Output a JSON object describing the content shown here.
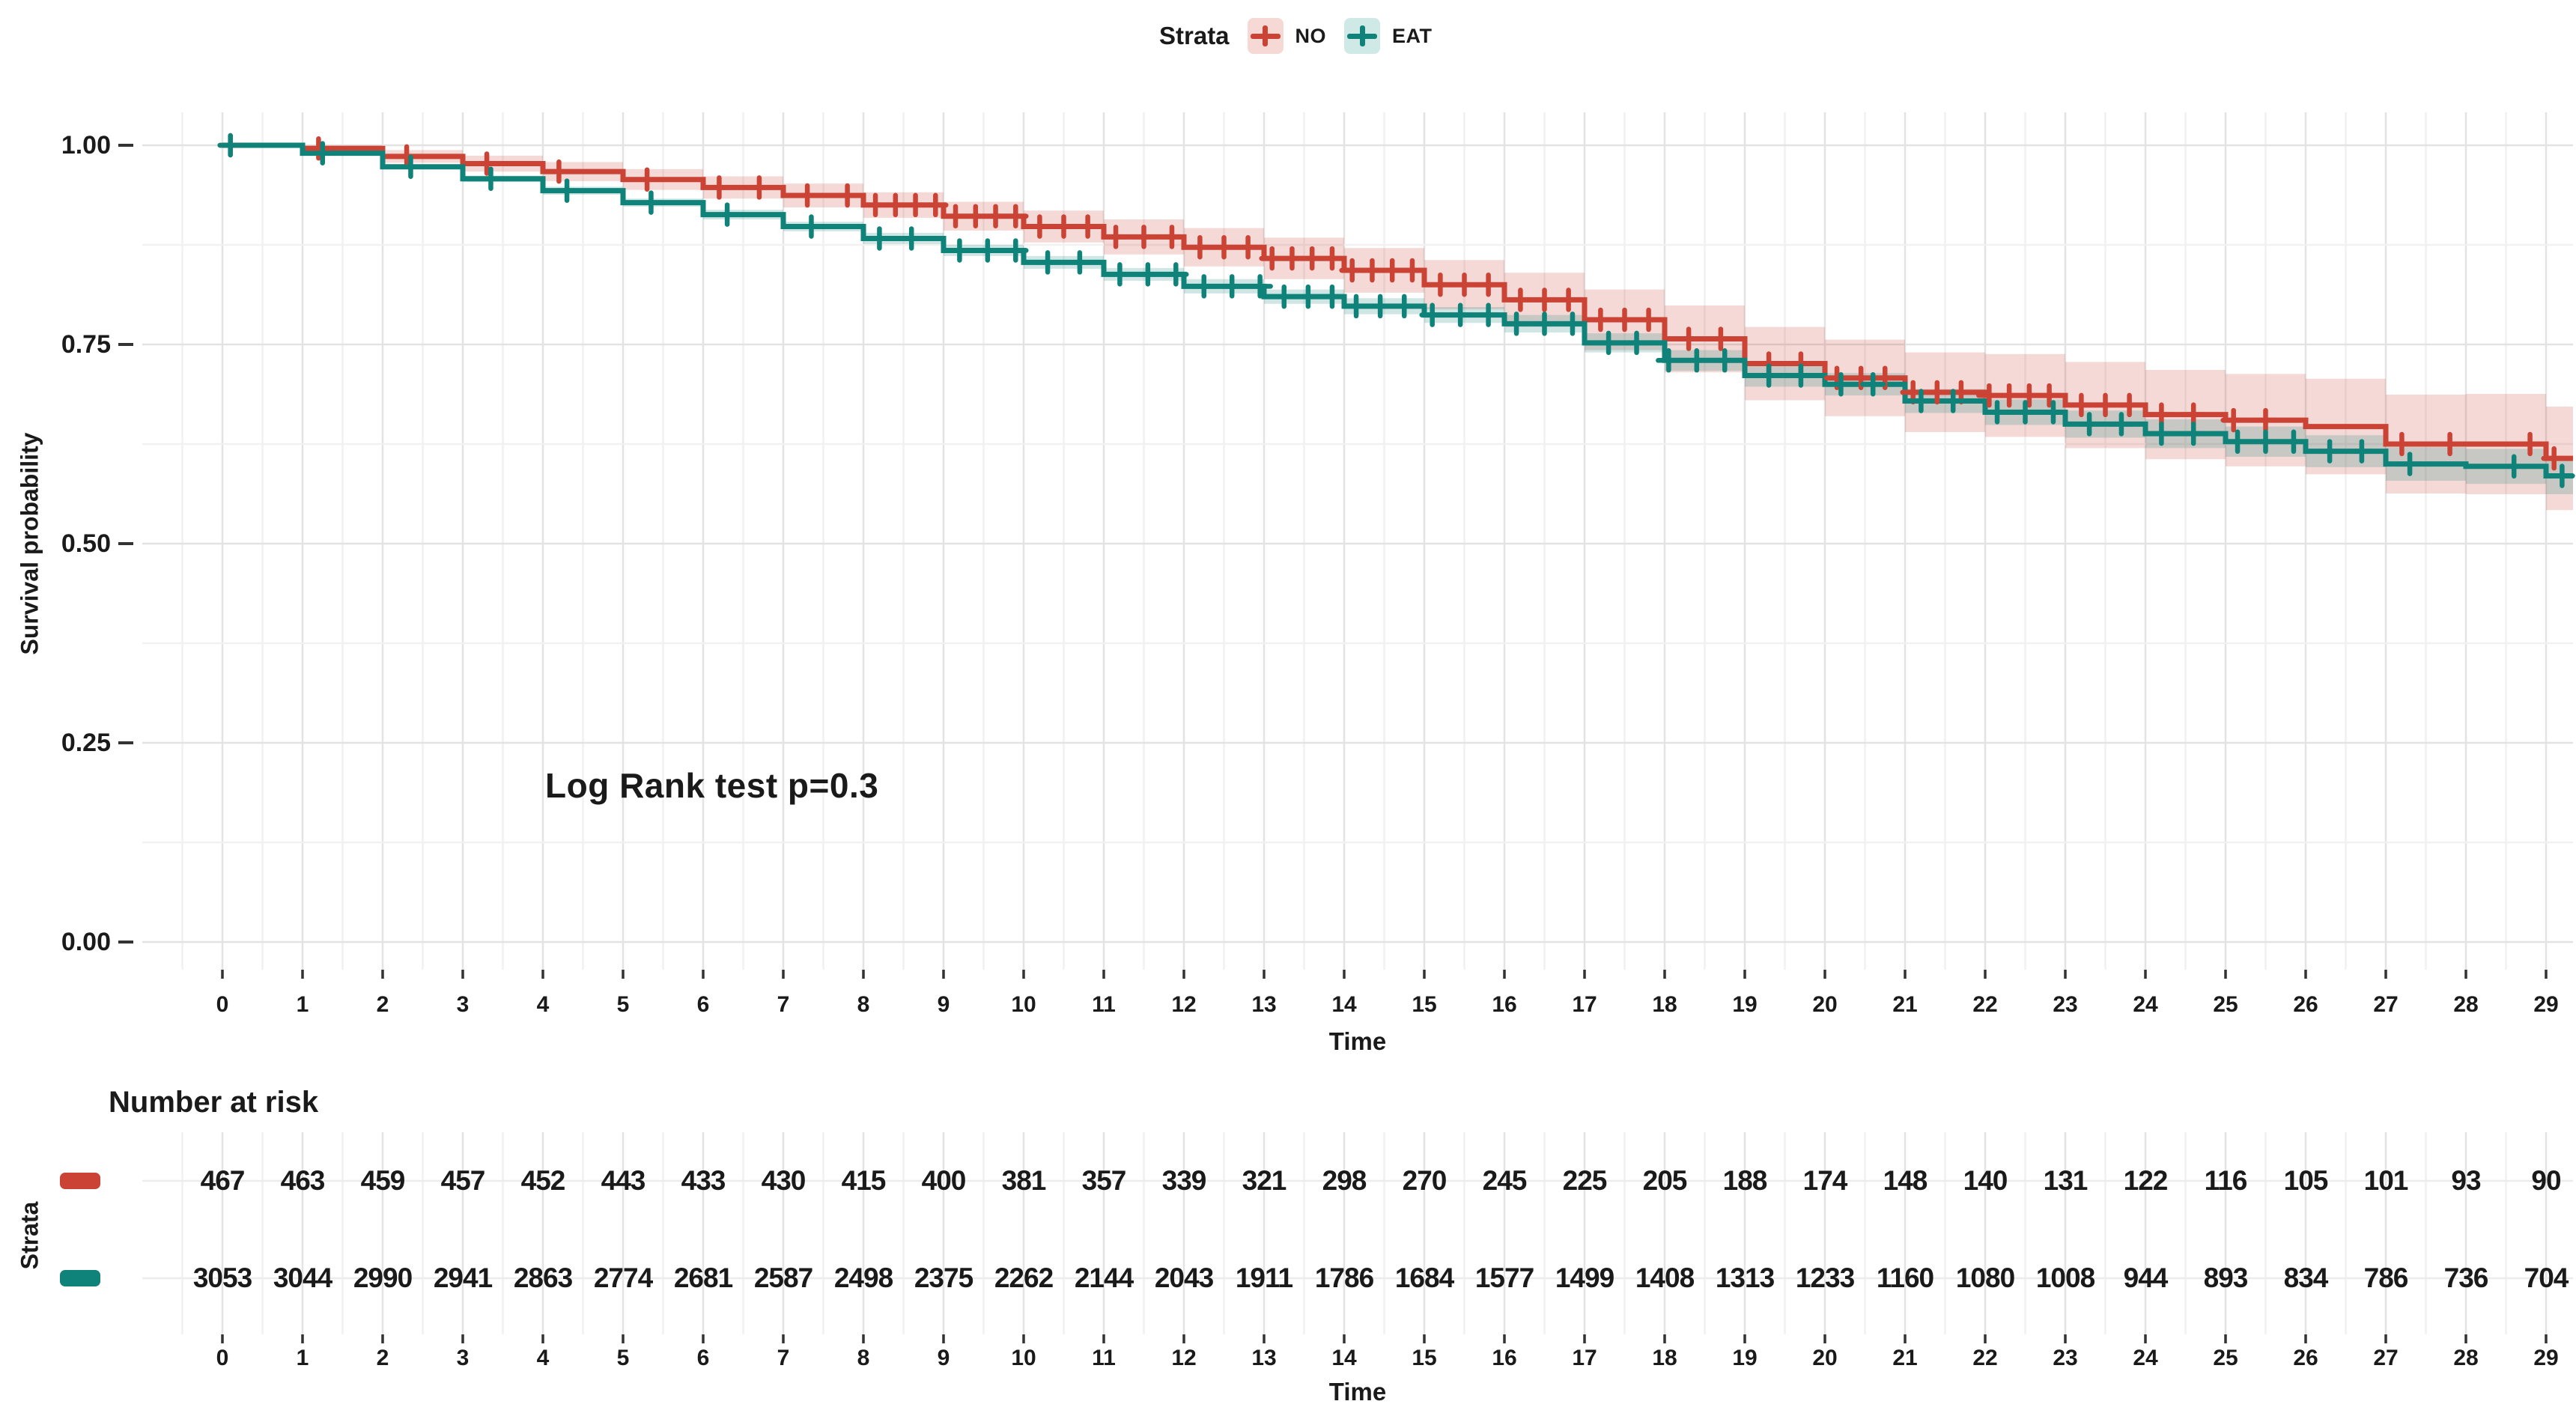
{
  "figure": {
    "legend": {
      "title": "Strata",
      "items": [
        {
          "label": "NO",
          "line_color": "#cb4334",
          "key_fill": "#f6d8d4"
        },
        {
          "label": "EAT",
          "line_color": "#0f8379",
          "key_fill": "#cfe9e6"
        }
      ]
    },
    "annotation": "Log Rank test p=0.3"
  },
  "chart_data": {
    "type": "line",
    "subtype": "kaplan-meier-step",
    "title": "",
    "xlabel": "Time",
    "ylabel": "Survival probability",
    "xlim": [
      0,
      29
    ],
    "ylim": [
      0,
      1
    ],
    "grid": "on",
    "legend_position": "top",
    "x_ticks": [
      0,
      1,
      2,
      3,
      4,
      5,
      6,
      7,
      8,
      9,
      10,
      11,
      12,
      13,
      14,
      15,
      16,
      17,
      18,
      19,
      20,
      21,
      22,
      23,
      24,
      25,
      26,
      27,
      28,
      29
    ],
    "y_ticks": [
      "1.00",
      "0.75",
      "0.50",
      "0.25",
      "0.00"
    ],
    "y_tick_values": [
      1.0,
      0.75,
      0.5,
      0.25,
      0.0
    ],
    "annotation": "Log Rank test p=0.3",
    "series": [
      {
        "name": "NO",
        "color": "#cb4334",
        "band_fill": "rgba(203,67,52,0.20)",
        "x": [
          0,
          1,
          2,
          3,
          4,
          5,
          6,
          7,
          8,
          9,
          10,
          11,
          12,
          13,
          14,
          15,
          16,
          17,
          18,
          19,
          20,
          21,
          22,
          23,
          24,
          25,
          26,
          27,
          28,
          29
        ],
        "values": [
          1.0,
          0.996,
          0.986,
          0.977,
          0.967,
          0.957,
          0.947,
          0.937,
          0.925,
          0.911,
          0.898,
          0.885,
          0.872,
          0.858,
          0.843,
          0.825,
          0.806,
          0.781,
          0.757,
          0.726,
          0.708,
          0.69,
          0.686,
          0.674,
          0.662,
          0.655,
          0.647,
          0.625,
          0.625,
          0.607
        ],
        "ci_half": [
          0,
          0.006,
          0.008,
          0.01,
          0.012,
          0.013,
          0.014,
          0.015,
          0.016,
          0.018,
          0.02,
          0.022,
          0.024,
          0.026,
          0.028,
          0.031,
          0.034,
          0.038,
          0.042,
          0.046,
          0.048,
          0.05,
          0.052,
          0.054,
          0.056,
          0.058,
          0.06,
          0.062,
          0.063,
          0.065
        ],
        "censor_times": [
          0.1,
          1.2,
          2.3,
          3.3,
          4.2,
          5.3,
          6.2,
          6.7,
          7.3,
          7.8,
          8.15,
          8.4,
          8.65,
          8.9,
          9.15,
          9.4,
          9.65,
          9.9,
          10.2,
          10.5,
          10.8,
          11.15,
          11.5,
          11.85,
          12.2,
          12.5,
          12.8,
          13.1,
          13.35,
          13.6,
          13.85,
          14.1,
          14.35,
          14.6,
          14.85,
          15.2,
          15.5,
          15.8,
          16.2,
          16.5,
          16.8,
          17.2,
          17.5,
          17.8,
          18.3,
          18.7,
          19.3,
          19.7,
          20.15,
          20.45,
          20.75,
          21.1,
          21.4,
          21.7,
          22.05,
          22.3,
          22.55,
          22.8,
          23.2,
          23.5,
          23.8,
          24.2,
          24.6,
          25.1,
          25.5,
          27.2,
          27.8,
          28.8,
          29.1
        ],
        "end_x": 29.35
      },
      {
        "name": "EAT",
        "color": "#0f8379",
        "band_fill": "rgba(15,131,121,0.20)",
        "x": [
          0,
          1,
          2,
          3,
          4,
          5,
          6,
          7,
          8,
          9,
          10,
          11,
          12,
          13,
          14,
          15,
          16,
          17,
          18,
          19,
          20,
          21,
          22,
          23,
          24,
          25,
          26,
          27,
          28,
          29
        ],
        "values": [
          1.0,
          0.99,
          0.973,
          0.958,
          0.943,
          0.928,
          0.913,
          0.898,
          0.883,
          0.868,
          0.853,
          0.838,
          0.823,
          0.81,
          0.798,
          0.787,
          0.776,
          0.752,
          0.73,
          0.711,
          0.7,
          0.679,
          0.665,
          0.65,
          0.638,
          0.628,
          0.616,
          0.6,
          0.597,
          0.585
        ],
        "ci_half": [
          0,
          0.002,
          0.003,
          0.004,
          0.005,
          0.005,
          0.006,
          0.006,
          0.007,
          0.007,
          0.008,
          0.008,
          0.009,
          0.009,
          0.01,
          0.01,
          0.011,
          0.012,
          0.013,
          0.014,
          0.014,
          0.015,
          0.016,
          0.017,
          0.018,
          0.019,
          0.02,
          0.021,
          0.022,
          0.023
        ],
        "censor_times": [
          0.1,
          1.25,
          2.35,
          3.35,
          4.3,
          5.35,
          6.3,
          7.35,
          8.2,
          8.6,
          9.2,
          9.55,
          9.9,
          10.3,
          10.7,
          11.2,
          11.55,
          11.9,
          12.25,
          12.6,
          12.95,
          13.25,
          13.55,
          13.85,
          14.15,
          14.45,
          14.75,
          15.1,
          15.45,
          15.8,
          16.15,
          16.5,
          16.85,
          17.3,
          17.65,
          18.05,
          18.4,
          18.75,
          19.3,
          19.7,
          20.2,
          20.6,
          21.2,
          21.6,
          22.15,
          22.5,
          22.85,
          23.3,
          23.7,
          24.2,
          24.6,
          25.15,
          25.5,
          25.85,
          26.3,
          26.7,
          27.3,
          28.6,
          29.2
        ],
        "end_x": 29.45
      }
    ]
  },
  "risk_table": {
    "title": "Number at risk",
    "ylabel": "Strata",
    "xlabel": "Time",
    "x_ticks": [
      0,
      1,
      2,
      3,
      4,
      5,
      6,
      7,
      8,
      9,
      10,
      11,
      12,
      13,
      14,
      15,
      16,
      17,
      18,
      19,
      20,
      21,
      22,
      23,
      24,
      25,
      26,
      27,
      28,
      29
    ],
    "rows": [
      {
        "name": "NO",
        "color": "#cb4334",
        "values": [
          467,
          463,
          459,
          457,
          452,
          443,
          433,
          430,
          415,
          400,
          381,
          357,
          339,
          321,
          298,
          270,
          245,
          225,
          205,
          188,
          174,
          148,
          140,
          131,
          122,
          116,
          105,
          101,
          93,
          90
        ]
      },
      {
        "name": "EAT",
        "color": "#0f8379",
        "values": [
          3053,
          3044,
          2990,
          2941,
          2863,
          2774,
          2681,
          2587,
          2498,
          2375,
          2262,
          2144,
          2043,
          1911,
          1786,
          1684,
          1577,
          1499,
          1408,
          1313,
          1233,
          1160,
          1080,
          1008,
          944,
          893,
          834,
          786,
          736,
          704
        ]
      }
    ]
  },
  "colors": {
    "text": "#1a1a1a",
    "grid_major": "#e3e3e3",
    "grid_minor": "#f1f1f1",
    "tick": "#333333"
  }
}
